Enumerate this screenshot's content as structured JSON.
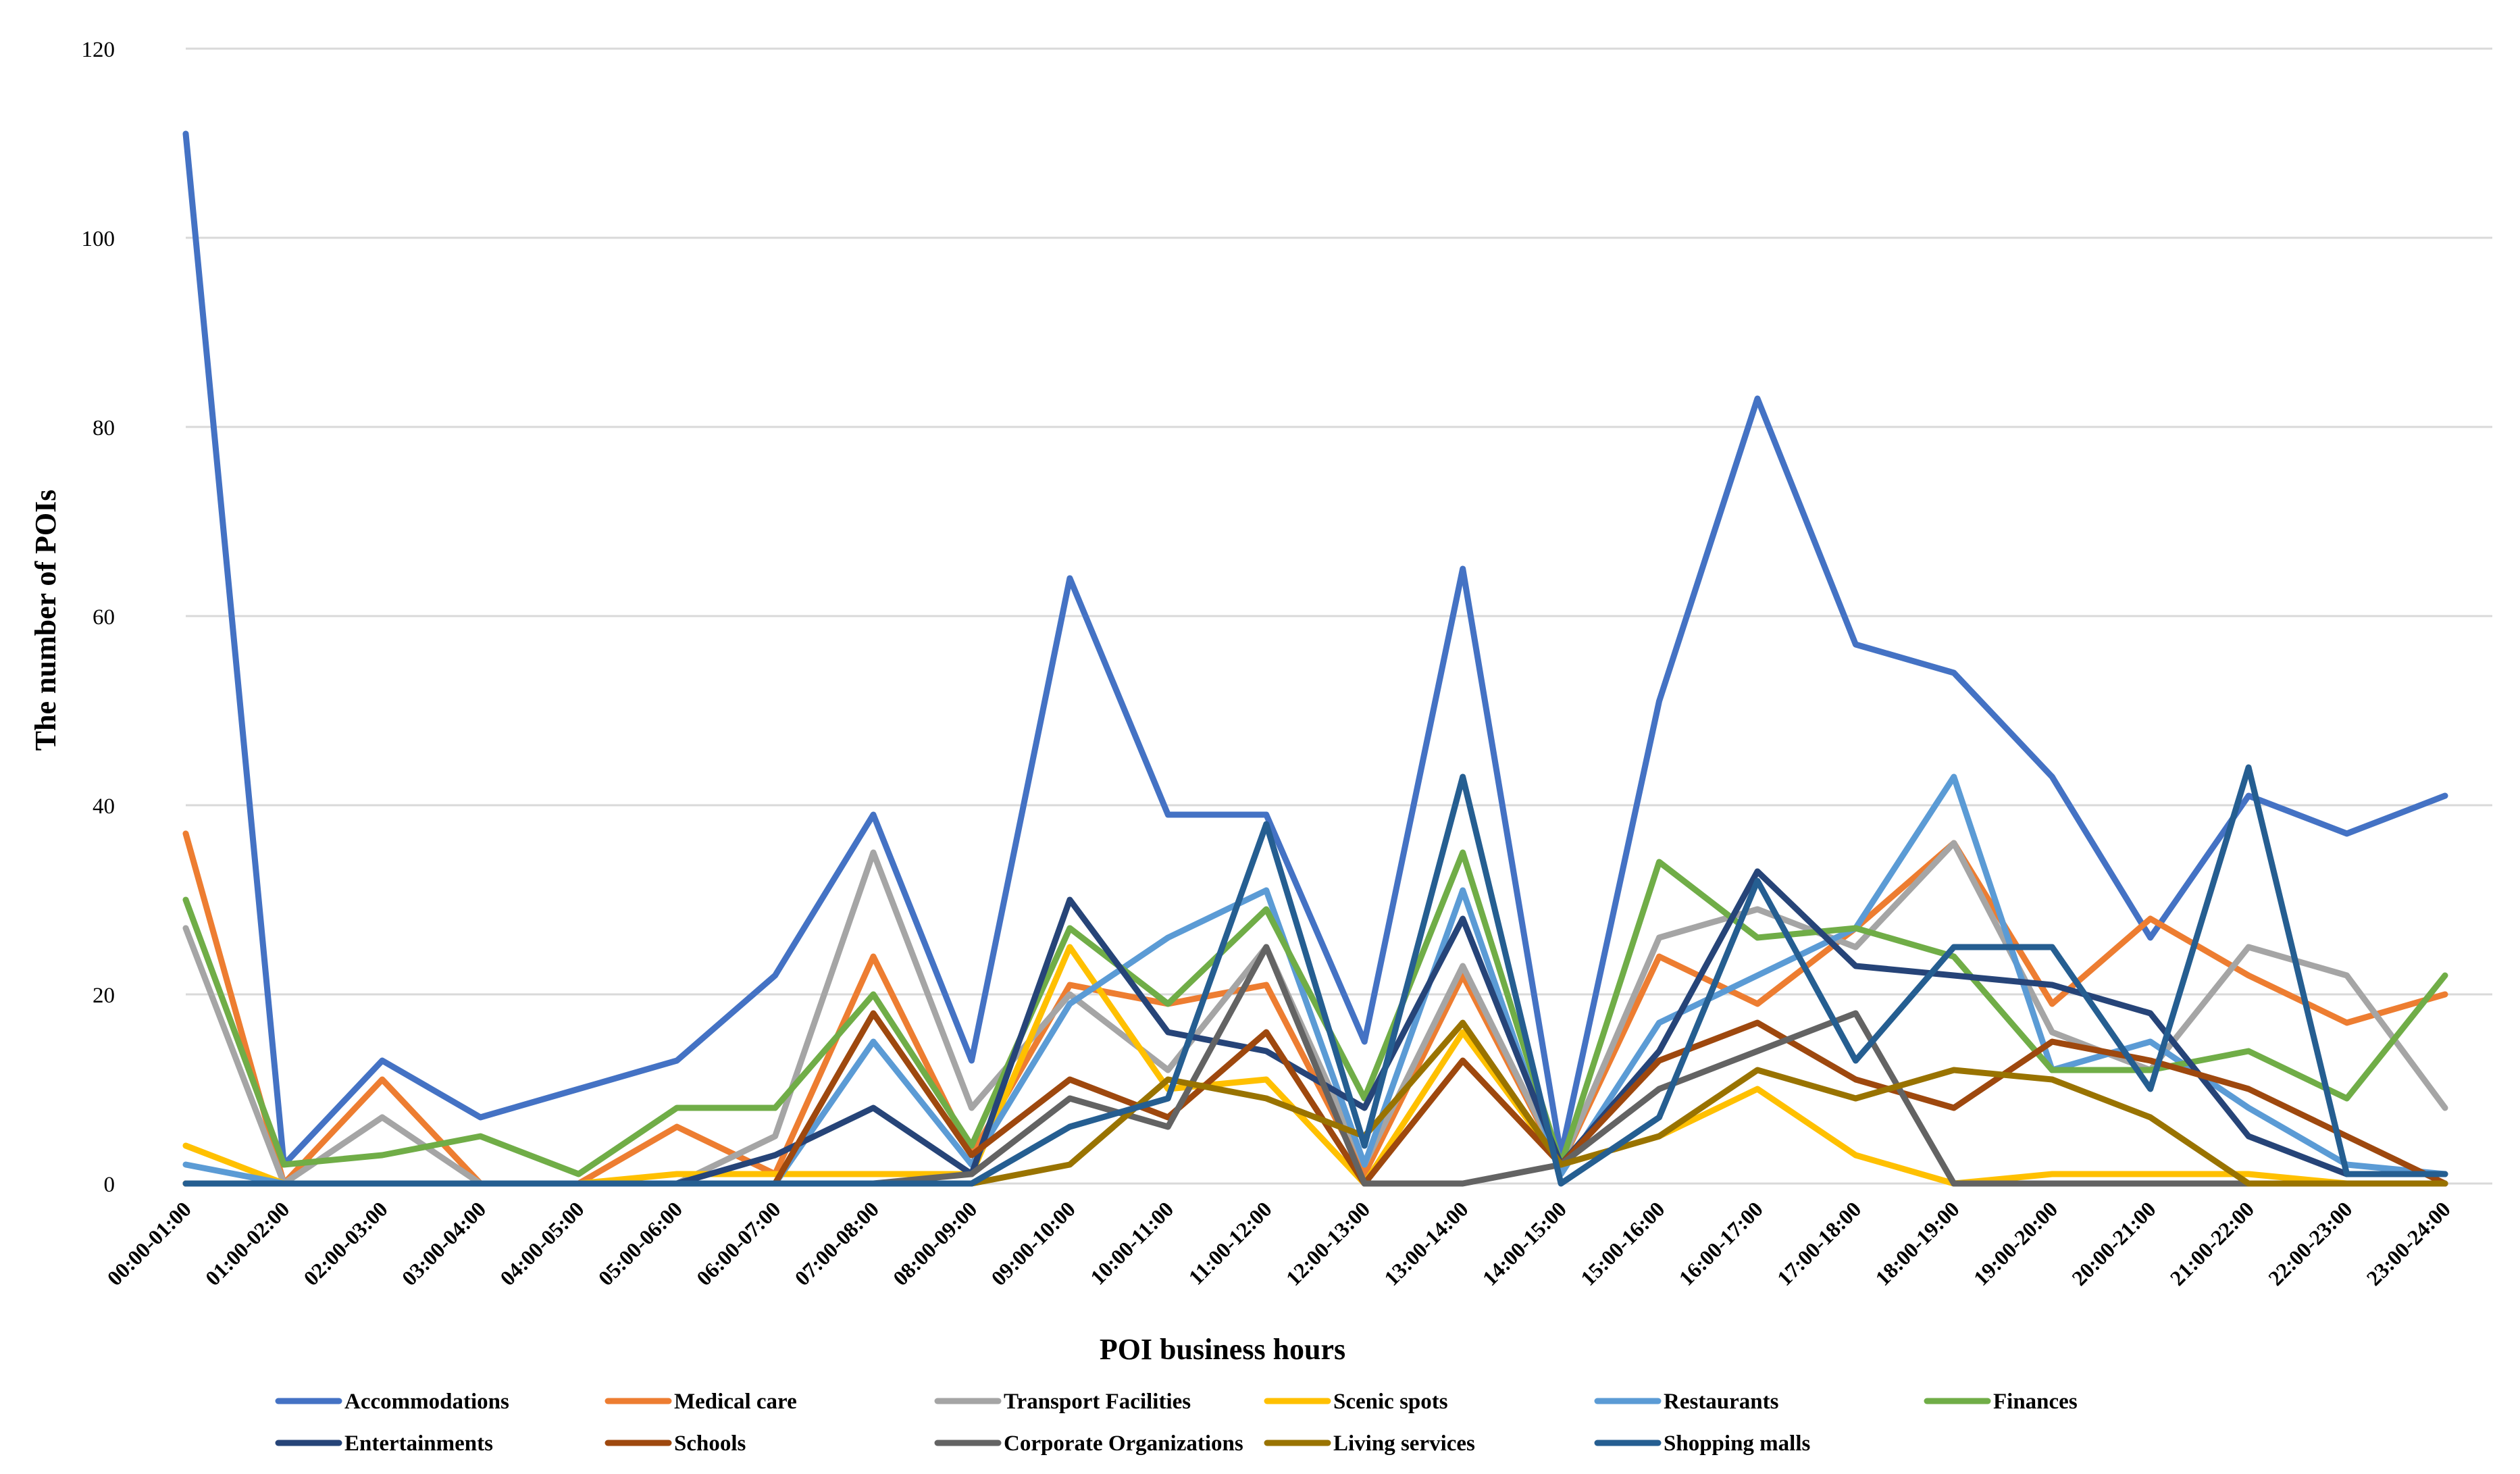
{
  "chart_data": {
    "type": "line",
    "title": "",
    "xlabel": "POI business hours",
    "ylabel": "The number of POIs",
    "ylim": [
      0,
      120
    ],
    "yticks": [
      0,
      20,
      40,
      60,
      80,
      100,
      120
    ],
    "grid": true,
    "legend_position": "bottom",
    "categories": [
      "00:00-01:00",
      "01:00-02:00",
      "02:00-03:00",
      "03:00-04:00",
      "04:00-05:00",
      "05:00-06:00",
      "06:00-07:00",
      "07:00-08:00",
      "08:00-09:00",
      "09:00-10:00",
      "10:00-11:00",
      "11:00-12:00",
      "12:00-13:00",
      "13:00-14:00",
      "14:00-15:00",
      "15:00-16:00",
      "16:00-17:00",
      "17:00-18:00",
      "18:00-19:00",
      "19:00-20:00",
      "20:00-21:00",
      "21:00-22:00",
      "22:00-23:00",
      "23:00-24:00"
    ],
    "series": [
      {
        "name": "Accommodations",
        "color": "#4472C4",
        "values": [
          111,
          2,
          13,
          7,
          10,
          13,
          22,
          39,
          13,
          64,
          39,
          39,
          15,
          65,
          3,
          51,
          83,
          57,
          54,
          43,
          26,
          41,
          37,
          41
        ]
      },
      {
        "name": "Medical care",
        "color": "#ED7D31",
        "values": [
          37,
          0,
          11,
          0,
          0,
          6,
          1,
          24,
          3,
          21,
          19,
          21,
          1,
          22,
          2,
          24,
          19,
          27,
          36,
          19,
          28,
          22,
          17,
          20
        ]
      },
      {
        "name": "Transport Facilities",
        "color": "#A5A5A5",
        "values": [
          27,
          0,
          7,
          0,
          0,
          0,
          5,
          35,
          8,
          20,
          12,
          25,
          2,
          23,
          2,
          26,
          29,
          25,
          36,
          16,
          12,
          25,
          22,
          8
        ]
      },
      {
        "name": "Scenic spots",
        "color": "#FFC000",
        "values": [
          4,
          0,
          0,
          0,
          0,
          1,
          1,
          1,
          1,
          25,
          10,
          11,
          0,
          16,
          2,
          5,
          10,
          3,
          0,
          1,
          1,
          1,
          0,
          0
        ]
      },
      {
        "name": "Restaurants",
        "color": "#5B9BD5",
        "values": [
          2,
          0,
          0,
          0,
          0,
          0,
          0,
          15,
          2,
          19,
          26,
          31,
          2,
          31,
          1,
          17,
          22,
          27,
          43,
          12,
          15,
          8,
          2,
          1
        ]
      },
      {
        "name": "Finances",
        "color": "#70AD47",
        "values": [
          30,
          2,
          3,
          5,
          1,
          8,
          8,
          20,
          4,
          27,
          19,
          29,
          9,
          35,
          2,
          34,
          26,
          27,
          24,
          12,
          12,
          14,
          9,
          22
        ]
      },
      {
        "name": "Entertainments",
        "color": "#264478",
        "values": [
          0,
          0,
          0,
          0,
          0,
          0,
          3,
          8,
          1,
          30,
          16,
          14,
          8,
          28,
          2,
          14,
          33,
          23,
          22,
          21,
          18,
          5,
          1,
          1
        ]
      },
      {
        "name": "Schools",
        "color": "#9E480E",
        "values": [
          0,
          0,
          0,
          0,
          0,
          0,
          0,
          18,
          3,
          11,
          7,
          16,
          0,
          13,
          2,
          13,
          17,
          11,
          8,
          15,
          13,
          10,
          5,
          0
        ]
      },
      {
        "name": "Corporate Organizations",
        "color": "#636363",
        "values": [
          0,
          0,
          0,
          0,
          0,
          0,
          0,
          0,
          1,
          9,
          6,
          25,
          0,
          0,
          2,
          10,
          14,
          18,
          0,
          0,
          0,
          0,
          0,
          0
        ]
      },
      {
        "name": "Living services",
        "color": "#997300",
        "values": [
          0,
          0,
          0,
          0,
          0,
          0,
          0,
          0,
          0,
          2,
          11,
          9,
          5,
          17,
          2,
          5,
          12,
          9,
          12,
          11,
          7,
          0,
          0,
          0
        ]
      },
      {
        "name": "Shopping malls",
        "color": "#255E91",
        "values": [
          0,
          0,
          0,
          0,
          0,
          0,
          0,
          0,
          0,
          6,
          9,
          38,
          4,
          43,
          0,
          7,
          32,
          13,
          25,
          25,
          10,
          44,
          1,
          1
        ]
      }
    ]
  }
}
